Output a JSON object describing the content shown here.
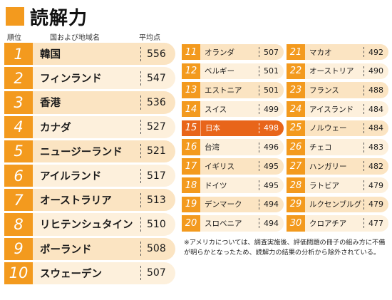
{
  "header": {
    "title": "読解力"
  },
  "columns": {
    "rank": "順位",
    "country": "国および地域名",
    "average": "平均点"
  },
  "top10": [
    {
      "rank": "1",
      "name": "韓国",
      "score": "556"
    },
    {
      "rank": "2",
      "name": "フィンランド",
      "score": "547"
    },
    {
      "rank": "3",
      "name": "香港",
      "score": "536"
    },
    {
      "rank": "4",
      "name": "カナダ",
      "score": "527"
    },
    {
      "rank": "5",
      "name": "ニュージーランド",
      "score": "521"
    },
    {
      "rank": "6",
      "name": "アイルランド",
      "score": "517"
    },
    {
      "rank": "7",
      "name": "オーストラリア",
      "score": "513"
    },
    {
      "rank": "8",
      "name": "リヒテンシュタイン",
      "score": "510"
    },
    {
      "rank": "9",
      "name": "ポーランド",
      "score": "508"
    },
    {
      "rank": "10",
      "name": "スウェーデン",
      "score": "507"
    }
  ],
  "ranks11to20": [
    {
      "rank": "11",
      "name": "オランダ",
      "score": "507"
    },
    {
      "rank": "12",
      "name": "ベルギー",
      "score": "501"
    },
    {
      "rank": "13",
      "name": "エストニア",
      "score": "501"
    },
    {
      "rank": "14",
      "name": "スイス",
      "score": "499"
    },
    {
      "rank": "15",
      "name": "日本",
      "score": "498"
    },
    {
      "rank": "16",
      "name": "台湾",
      "score": "496"
    },
    {
      "rank": "17",
      "name": "イギリス",
      "score": "495"
    },
    {
      "rank": "18",
      "name": "ドイツ",
      "score": "495"
    },
    {
      "rank": "19",
      "name": "デンマーク",
      "score": "494"
    },
    {
      "rank": "20",
      "name": "スロベニア",
      "score": "494"
    }
  ],
  "ranks21to30": [
    {
      "rank": "21",
      "name": "マカオ",
      "score": "492"
    },
    {
      "rank": "22",
      "name": "オーストリア",
      "score": "490"
    },
    {
      "rank": "23",
      "name": "フランス",
      "score": "488"
    },
    {
      "rank": "24",
      "name": "アイスランド",
      "score": "484"
    },
    {
      "rank": "25",
      "name": "ノルウェー",
      "score": "484"
    },
    {
      "rank": "26",
      "name": "チェコ",
      "score": "483"
    },
    {
      "rank": "27",
      "name": "ハンガリー",
      "score": "482"
    },
    {
      "rank": "28",
      "name": "ラトビア",
      "score": "479"
    },
    {
      "rank": "29",
      "name": "ルクセンブルグ",
      "score": "479"
    },
    {
      "rank": "30",
      "name": "クロアチア",
      "score": "477"
    }
  ],
  "footnote": "※アメリカについては、調査実施後、評価問題の冊子の組み方に不備が明らかとなったため、読解力の結果の分析から除外されている。",
  "colors": {
    "accent": "#f39a1e",
    "highlight": "#e8651a",
    "row_light": "#fdf0dc",
    "row_mid": "#fbe4c2"
  }
}
